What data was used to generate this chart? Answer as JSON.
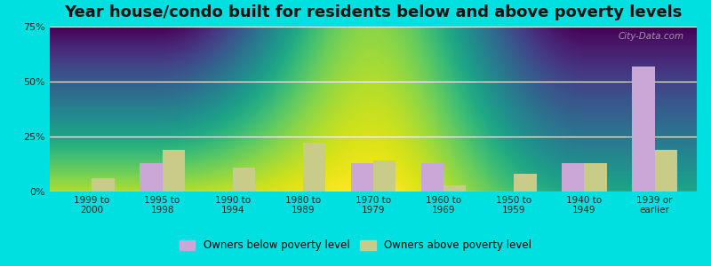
{
  "title": "Year house/condo built for residents below and above poverty levels",
  "categories": [
    "1999 to\n2000",
    "1995 to\n1998",
    "1990 to\n1994",
    "1980 to\n1989",
    "1970 to\n1979",
    "1960 to\n1969",
    "1950 to\n1959",
    "1940 to\n1949",
    "1939 or\nearlier"
  ],
  "below_poverty": [
    0,
    13,
    0,
    0,
    13,
    13,
    0,
    13,
    57
  ],
  "above_poverty": [
    6,
    19,
    11,
    22,
    14,
    3,
    8,
    13,
    19
  ],
  "below_color": "#c9a8d8",
  "above_color": "#c8cc88",
  "outer_bg": "#00e0e0",
  "ylim": [
    0,
    75
  ],
  "yticks": [
    0,
    25,
    50,
    75
  ],
  "ytick_labels": [
    "0%",
    "25%",
    "50%",
    "75%"
  ],
  "legend_below": "Owners below poverty level",
  "legend_above": "Owners above poverty level",
  "title_fontsize": 13,
  "bar_width": 0.32
}
